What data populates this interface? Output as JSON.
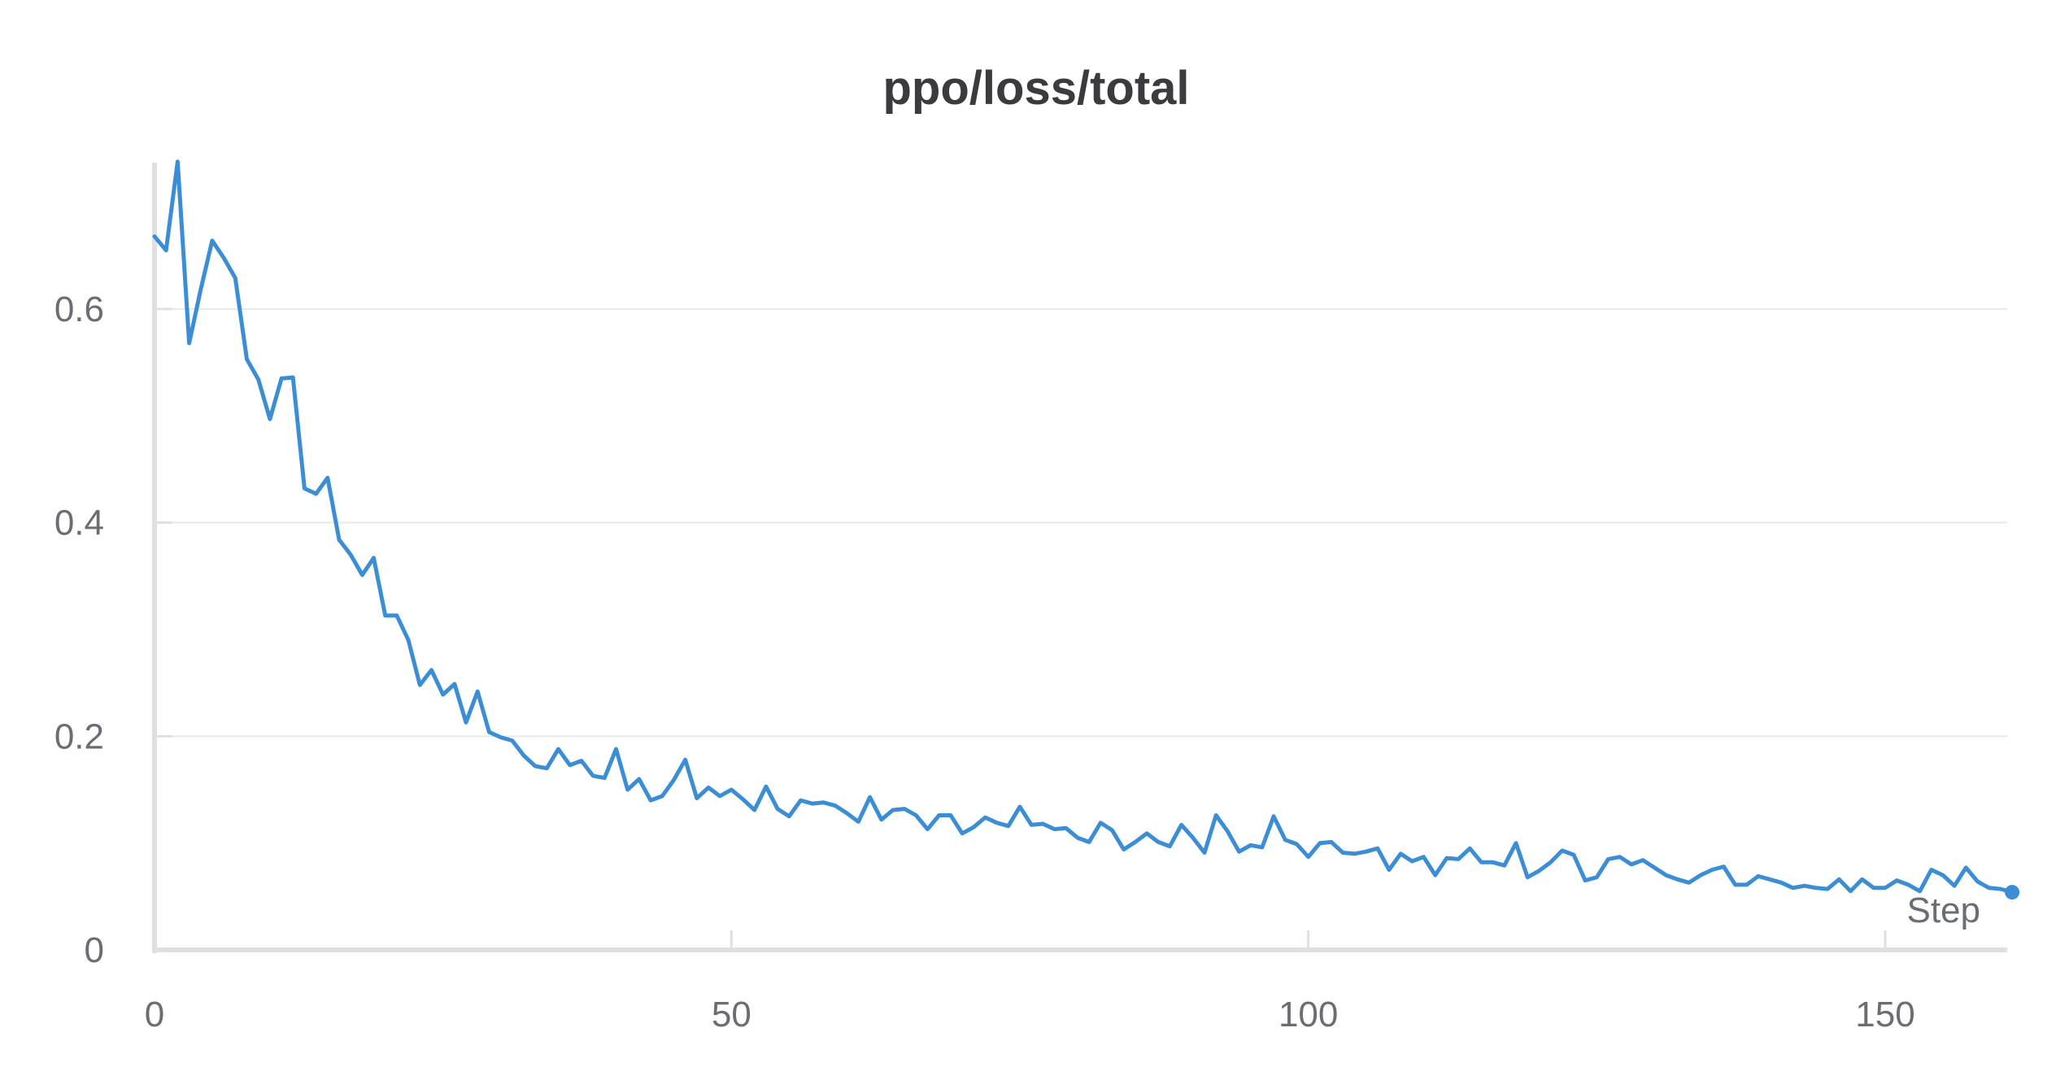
{
  "chart_data": {
    "type": "line",
    "title": "ppo/loss/total",
    "xlabel": "Step",
    "ylabel": "",
    "xlim": [
      0,
      161
    ],
    "ylim": [
      0,
      0.74
    ],
    "x_ticks": [
      0,
      50,
      100,
      150
    ],
    "x_tick_labels": [
      "0",
      "50",
      "100",
      "150"
    ],
    "y_ticks": [
      0,
      0.2,
      0.4,
      0.6
    ],
    "y_tick_labels": [
      "0",
      "0.2",
      "0.4",
      "0.6"
    ],
    "grid": "horizontal",
    "legend": "none",
    "colors": {
      "line": "#3b8ed6",
      "grid": "#e9e9eb",
      "axis": "#dfe0e3",
      "text": "#6b6d75",
      "title": "#3a3b3f"
    },
    "series": [
      {
        "x": [
          0,
          1,
          2,
          3,
          4,
          5,
          6,
          7,
          8,
          9,
          10,
          11,
          12,
          13,
          14,
          15,
          16,
          17,
          18,
          19,
          20,
          21,
          22,
          23,
          24,
          25,
          26,
          27,
          28,
          29,
          30,
          31,
          32,
          33,
          34,
          35,
          36,
          37,
          38,
          39,
          40,
          41,
          42,
          43,
          44,
          45,
          46,
          47,
          48,
          49,
          50,
          51,
          52,
          53,
          54,
          55,
          56,
          57,
          58,
          59,
          60,
          61,
          62,
          63,
          64,
          65,
          66,
          67,
          68,
          69,
          70,
          71,
          72,
          73,
          74,
          75,
          76,
          77,
          78,
          79,
          80,
          81,
          82,
          83,
          84,
          85,
          86,
          87,
          88,
          89,
          90,
          91,
          92,
          93,
          94,
          95,
          96,
          97,
          98,
          99,
          100,
          101,
          102,
          103,
          104,
          105,
          106,
          107,
          108,
          109,
          110,
          111,
          112,
          113,
          114,
          115,
          116,
          117,
          118,
          119,
          120,
          121,
          122,
          123,
          124,
          125,
          126,
          127,
          128,
          129,
          130,
          131,
          132,
          133,
          134,
          135,
          136,
          137,
          138,
          139,
          140,
          141,
          142,
          143,
          144,
          145,
          146,
          147,
          148,
          149,
          150,
          151,
          152,
          153,
          154,
          155,
          156,
          157,
          158,
          159,
          160,
          161
        ],
        "y": [
          0.668,
          0.655,
          0.738,
          0.568,
          0.618,
          0.664,
          0.648,
          0.629,
          0.553,
          0.534,
          0.497,
          0.535,
          0.536,
          0.432,
          0.427,
          0.442,
          0.384,
          0.37,
          0.351,
          0.367,
          0.313,
          0.313,
          0.29,
          0.248,
          0.262,
          0.239,
          0.249,
          0.213,
          0.242,
          0.204,
          0.199,
          0.196,
          0.182,
          0.172,
          0.17,
          0.188,
          0.173,
          0.177,
          0.163,
          0.161,
          0.188,
          0.15,
          0.16,
          0.14,
          0.144,
          0.159,
          0.178,
          0.142,
          0.152,
          0.144,
          0.15,
          0.141,
          0.131,
          0.153,
          0.132,
          0.125,
          0.14,
          0.137,
          0.138,
          0.135,
          0.128,
          0.12,
          0.143,
          0.122,
          0.131,
          0.132,
          0.126,
          0.113,
          0.126,
          0.126,
          0.109,
          0.115,
          0.124,
          0.119,
          0.116,
          0.134,
          0.117,
          0.118,
          0.113,
          0.114,
          0.105,
          0.101,
          0.119,
          0.112,
          0.094,
          0.101,
          0.109,
          0.101,
          0.097,
          0.117,
          0.105,
          0.091,
          0.126,
          0.111,
          0.092,
          0.098,
          0.096,
          0.125,
          0.103,
          0.099,
          0.087,
          0.1,
          0.101,
          0.091,
          0.09,
          0.092,
          0.095,
          0.075,
          0.09,
          0.083,
          0.087,
          0.07,
          0.086,
          0.085,
          0.095,
          0.082,
          0.082,
          0.079,
          0.1,
          0.068,
          0.074,
          0.082,
          0.093,
          0.089,
          0.065,
          0.068,
          0.085,
          0.087,
          0.08,
          0.084,
          0.077,
          0.07,
          0.066,
          0.063,
          0.07,
          0.075,
          0.078,
          0.061,
          0.061,
          0.069,
          0.066,
          0.063,
          0.058,
          0.06,
          0.058,
          0.057,
          0.066,
          0.055,
          0.066,
          0.058,
          0.058,
          0.065,
          0.061,
          0.055,
          0.075,
          0.07,
          0.06,
          0.077,
          0.064,
          0.058,
          0.057,
          0.054
        ]
      }
    ]
  }
}
